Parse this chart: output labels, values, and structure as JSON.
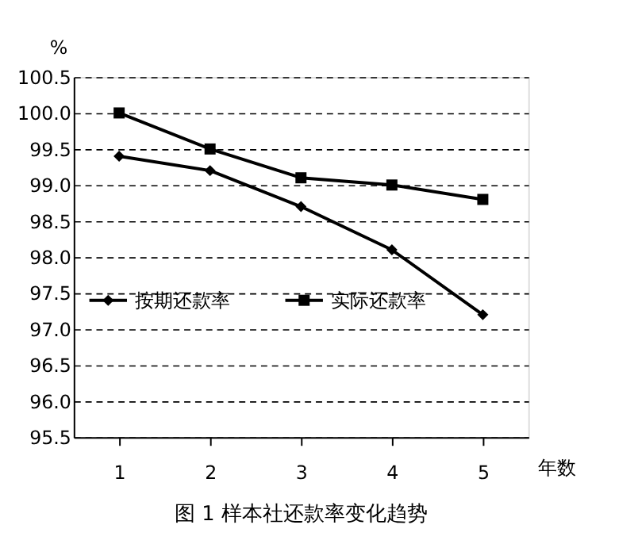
{
  "chart_data": {
    "type": "line",
    "title": "图 1   样本社还款率变化趋势",
    "ylabel": "%",
    "xlabel": "年数",
    "categories": [
      "1",
      "2",
      "3",
      "4",
      "5"
    ],
    "series": [
      {
        "name": "按期还款率",
        "color": "#000000",
        "marker": "diamond",
        "values": [
          99.4,
          99.2,
          98.7,
          98.1,
          97.2
        ]
      },
      {
        "name": "实际还款率",
        "color": "#000000",
        "marker": "square",
        "values": [
          100.0,
          99.5,
          99.1,
          99.0,
          98.8
        ]
      }
    ],
    "ylim": [
      95.5,
      100.5
    ],
    "yticks": [
      {
        "value": 95.5,
        "label": "95.5"
      },
      {
        "value": 96,
        "label": "96.0"
      },
      {
        "value": 96.5,
        "label": "96.5"
      },
      {
        "value": 97,
        "label": "97.0"
      },
      {
        "value": 97.5,
        "label": "97.5"
      },
      {
        "value": 98,
        "label": "98.0"
      },
      {
        "value": 98.5,
        "label": "98.5"
      },
      {
        "value": 99,
        "label": "99.0"
      },
      {
        "value": 99.5,
        "label": "99.5"
      },
      {
        "value": 100,
        "label": "100.0"
      },
      {
        "value": 100.5,
        "label": "100.5"
      }
    ],
    "grid": "y",
    "legend": "left",
    "line_style": "solid"
  }
}
